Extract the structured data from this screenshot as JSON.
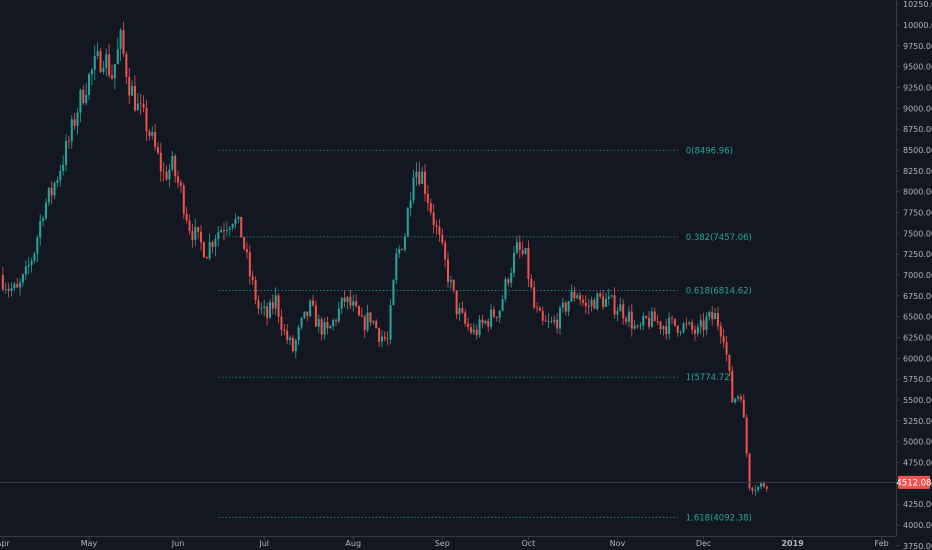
{
  "chart_data": {
    "type": "candlestick",
    "title": "",
    "xlabel": "",
    "ylabel": "",
    "ylim": [
      3700,
      10300
    ],
    "y_ticks": [
      3750,
      4000,
      4250,
      4500,
      4750,
      5000,
      5250,
      5500,
      5750,
      6000,
      6250,
      6500,
      6750,
      7000,
      7250,
      7500,
      7750,
      8000,
      8250,
      8500,
      8750,
      9000,
      9250,
      9500,
      9750,
      10000,
      10250
    ],
    "x_labels": [
      {
        "label": "Apr",
        "date": "2018-04-01"
      },
      {
        "label": "May",
        "date": "2018-05-01"
      },
      {
        "label": "Jun",
        "date": "2018-06-01"
      },
      {
        "label": "Jul",
        "date": "2018-07-01"
      },
      {
        "label": "Aug",
        "date": "2018-08-01"
      },
      {
        "label": "Sep",
        "date": "2018-09-01"
      },
      {
        "label": "Oct",
        "date": "2018-10-01"
      },
      {
        "label": "Nov",
        "date": "2018-11-01"
      },
      {
        "label": "Dec",
        "date": "2018-12-01"
      },
      {
        "label": "2019",
        "date": "2019-01-01"
      },
      {
        "label": "Feb",
        "date": "2019-02-01"
      }
    ],
    "x_range": [
      "2018-03-31",
      "2019-02-06"
    ],
    "current_price": {
      "label": "4512.08",
      "value": 4512.08
    },
    "fib_levels": [
      {
        "ratio": "0",
        "price": 8496.96,
        "label": "0(8496.96)"
      },
      {
        "ratio": "0.382",
        "price": 7457.06,
        "label": "0.382(7457.06)"
      },
      {
        "ratio": "0.618",
        "price": 6814.62,
        "label": "0.618(6814.62)"
      },
      {
        "ratio": "1",
        "price": 5774.72,
        "label": "1(5774.72)"
      },
      {
        "ratio": "1.618",
        "price": 4092.38,
        "label": "1.618(4092.38)"
      }
    ],
    "fib_range": [
      "2018-06-15",
      "2018-11-22"
    ],
    "path_start": "2018-03-31",
    "path_step_days": 3,
    "close_path": [
      7000,
      6850,
      6800,
      7000,
      7300,
      7800,
      8000,
      8300,
      8600,
      9000,
      9300,
      9500,
      9650,
      9400,
      9800,
      9300,
      9000,
      8800,
      8500,
      8200,
      8300,
      8000,
      7600,
      7400,
      7300,
      7500,
      7600,
      7700,
      7500,
      7000,
      6600,
      6500,
      6700,
      6300,
      6100,
      6400,
      6600,
      6400,
      6300,
      6500,
      6700,
      6600,
      6400,
      6500,
      6300,
      6200,
      7200,
      7500,
      8300,
      8200,
      7800,
      7400,
      7000,
      6600,
      6400,
      6300,
      6400,
      6500,
      6600,
      7000,
      7300,
      7200,
      6600,
      6400,
      6400,
      6500,
      6700,
      6800,
      6600,
      6700,
      6700,
      6650,
      6600,
      6500,
      6300,
      6450,
      6450,
      6400,
      6400,
      6400,
      6350,
      6300,
      6450,
      6500,
      6300,
      5500,
      5600,
      4500,
      4450,
      4512
    ]
  },
  "colors": {
    "background": "#131722",
    "up": "#26a69a",
    "down": "#ef5350",
    "fib_line": "#26a69a",
    "fib_label": "#26a69a",
    "axis_text": "#b2b5be",
    "axis_line": "#363a45",
    "current_line": "#363a45",
    "current_badge": "#ef5350",
    "current_text": "#ffffff"
  }
}
